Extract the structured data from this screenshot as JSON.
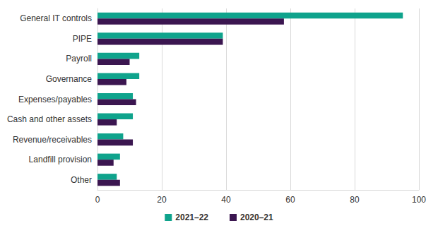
{
  "chart_data": {
    "type": "bar",
    "orientation": "horizontal",
    "categories": [
      "General IT controls",
      "PIPE",
      "Payroll",
      "Governance",
      "Expenses/payables",
      "Cash and other assets",
      "Revenue/receivables",
      "Landfill provision",
      "Other"
    ],
    "series": [
      {
        "name": "2021–22",
        "color": "#0fa38c",
        "values": [
          95,
          39,
          13,
          13,
          11,
          11,
          8,
          7,
          6
        ]
      },
      {
        "name": "2020–21",
        "color": "#3b1650",
        "values": [
          58,
          39,
          10,
          9,
          12,
          6,
          11,
          5,
          7
        ]
      }
    ],
    "xlim": [
      0,
      100
    ],
    "xticks": [
      0,
      20,
      40,
      60,
      80,
      100
    ],
    "grid": true,
    "legend": "bottom"
  }
}
